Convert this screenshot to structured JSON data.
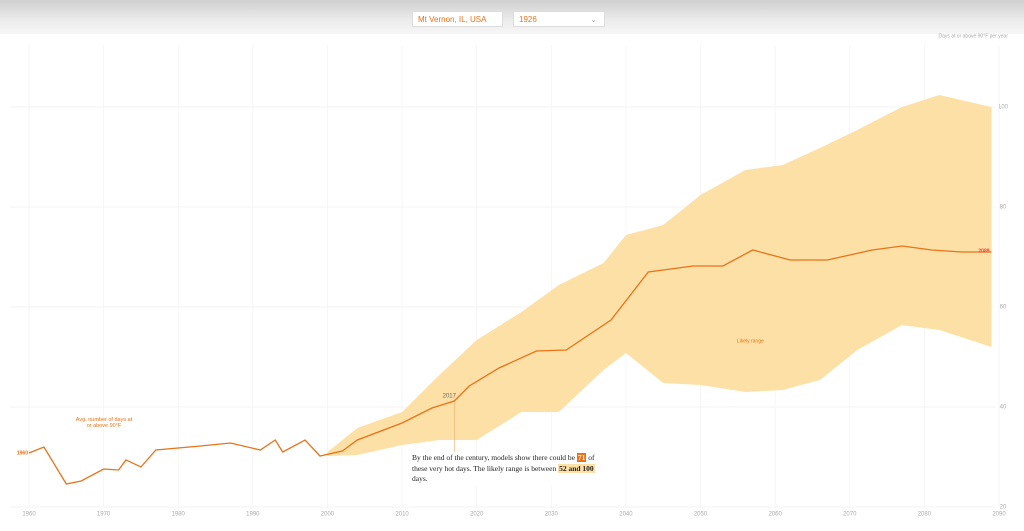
{
  "controls": {
    "location": "Mt Vernon, IL, USA",
    "year": "1926"
  },
  "chart_data": {
    "type": "line",
    "axis_note": "Days at or above 90°F per year",
    "xlim": [
      1960,
      2090
    ],
    "xticks": [
      1960,
      1970,
      1980,
      1990,
      2000,
      2010,
      2020,
      2030,
      2040,
      2050,
      2060,
      2070,
      2080,
      2090
    ],
    "ylim": [
      20,
      100
    ],
    "yticks": [
      20,
      40,
      60,
      80,
      100
    ],
    "grid": true,
    "x": [
      1960,
      1962,
      1965,
      1967,
      1970,
      1972,
      1973,
      1975,
      1977,
      1983,
      1987,
      1991,
      1993,
      1994,
      1997,
      1999,
      2002,
      2004,
      2010,
      2014,
      2017,
      2019,
      2023,
      2028,
      2032,
      2038,
      2043,
      2049,
      2053,
      2057,
      2062,
      2067,
      2073,
      2077,
      2081,
      2085,
      2089
    ],
    "series": [
      {
        "name": "Avg. number of days at or above 90°F",
        "color": "#e8731a",
        "values": [
          30.8,
          32,
          24.6,
          25.2,
          27.6,
          27.4,
          29.4,
          28,
          31.4,
          32.2,
          32.8,
          31.4,
          33.4,
          31,
          33.4,
          30.2,
          31.2,
          33.4,
          36.8,
          39.8,
          41.2,
          44.2,
          47.8,
          51.2,
          51.4,
          57.4,
          67,
          68.2,
          68.2,
          71.4,
          69.4,
          69.4,
          71.4,
          72.2,
          71.4,
          71,
          71
        ]
      }
    ],
    "band": {
      "name": "Likely range",
      "color": "#fde0a6",
      "x": [
        2000,
        2004,
        2010,
        2015,
        2020,
        2026,
        2031,
        2037,
        2040,
        2045,
        2050,
        2056,
        2061,
        2066,
        2071,
        2077,
        2082,
        2089
      ],
      "lower": [
        30.2,
        30.4,
        32.4,
        33.4,
        33.4,
        39,
        39,
        47.4,
        50.8,
        44.8,
        44.4,
        43,
        43.4,
        45.4,
        51.4,
        56.4,
        55.4,
        52
      ],
      "upper": [
        31,
        35.8,
        39,
        46.4,
        53.4,
        59,
        64.4,
        68.8,
        74.4,
        76.4,
        82.4,
        87.4,
        88.4,
        91.8,
        95.4,
        100,
        102.4,
        100
      ]
    },
    "highlight_year": 2017,
    "summary": {
      "before": "By the end of the century, models show there could be",
      "value": 71,
      "middle": "of these very hot days. The likely range is between",
      "range": "52 and 100",
      "after": "days."
    }
  }
}
